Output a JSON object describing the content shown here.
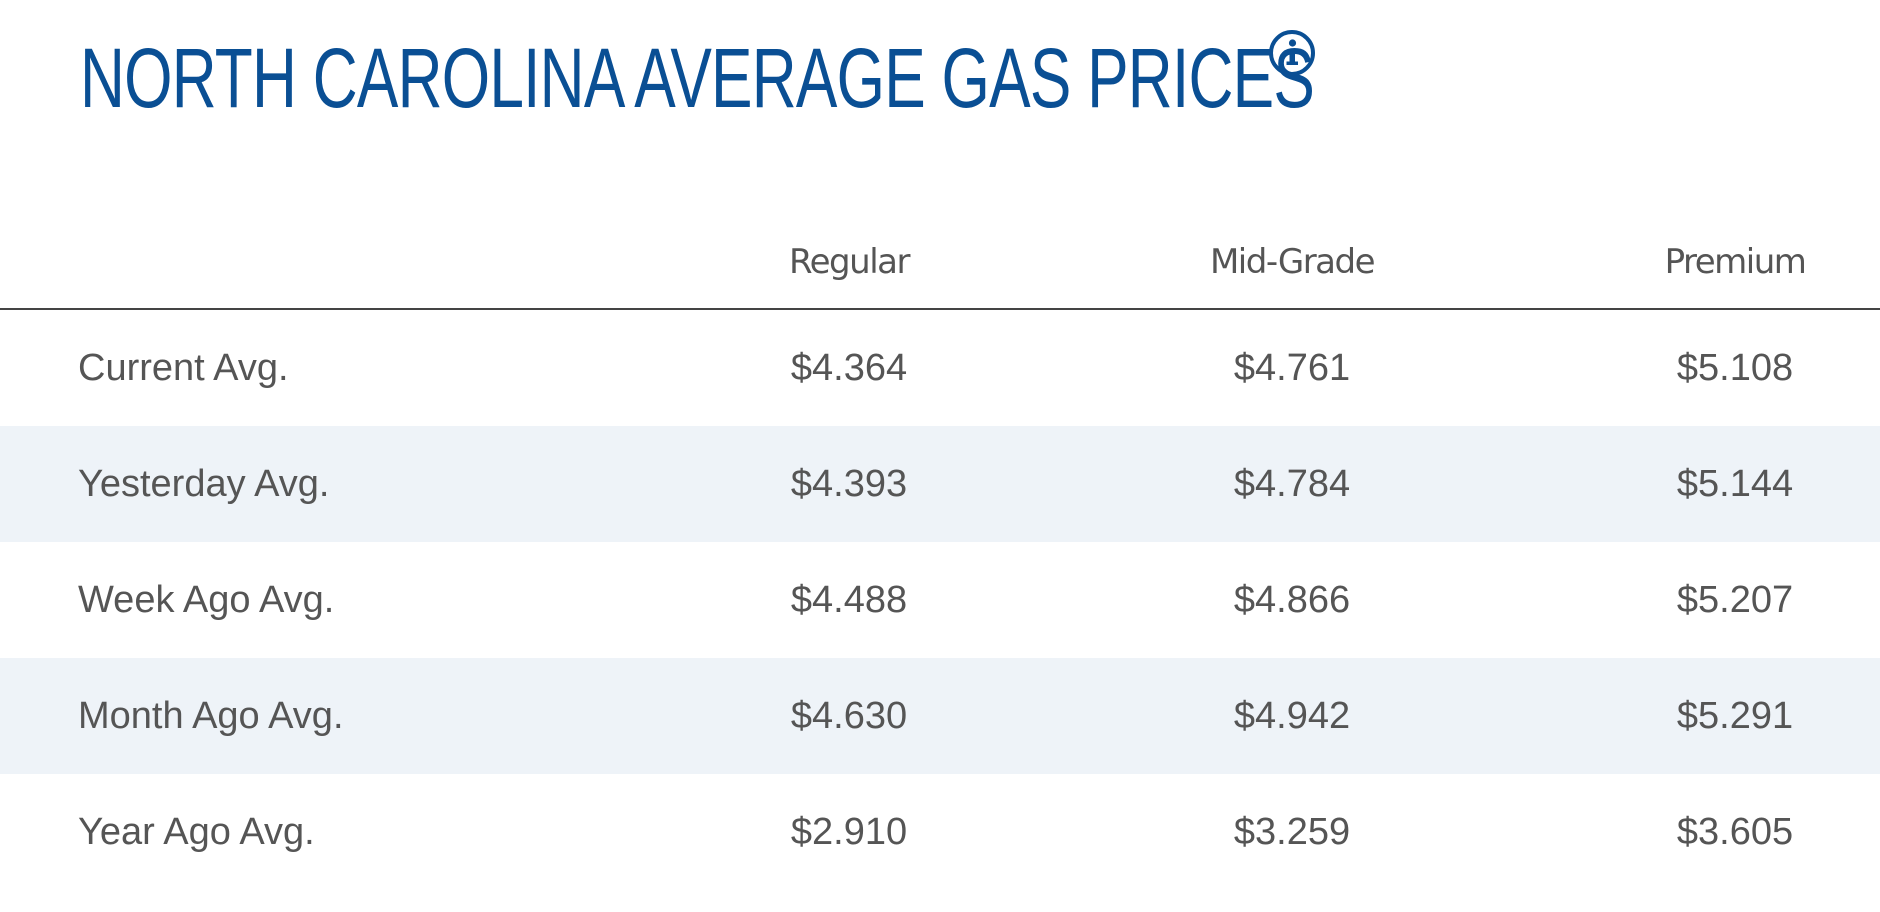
{
  "title": "NORTH CAROLINA AVERAGE GAS PRICES",
  "info_icon": "info-icon",
  "colors": {
    "title": "#0a4f94",
    "text": "#555555",
    "row_shade": "#eef3f8",
    "divider": "#444444"
  },
  "table": {
    "columns": [
      "Regular",
      "Mid-Grade",
      "Premium"
    ],
    "rows": [
      {
        "label": "Current Avg.",
        "values": [
          "$4.364",
          "$4.761",
          "$5.108"
        ]
      },
      {
        "label": "Yesterday Avg.",
        "values": [
          "$4.393",
          "$4.784",
          "$5.144"
        ]
      },
      {
        "label": "Week Ago Avg.",
        "values": [
          "$4.488",
          "$4.866",
          "$5.207"
        ]
      },
      {
        "label": "Month Ago Avg.",
        "values": [
          "$4.630",
          "$4.942",
          "$5.291"
        ]
      },
      {
        "label": "Year Ago Avg.",
        "values": [
          "$2.910",
          "$3.259",
          "$3.605"
        ]
      }
    ]
  }
}
